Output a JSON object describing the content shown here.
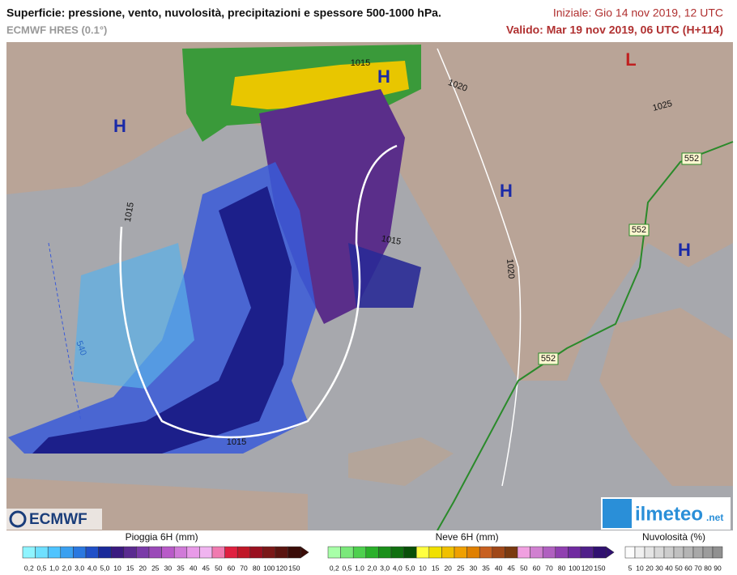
{
  "header": {
    "title": "Superficie: pressione, vento, nuvolosità, precipitazioni e spessore 500-1000 hPa.",
    "model": "ECMWF HRES (0.1°)",
    "init": "Iniziale: Gio 14 nov 2019, 12 UTC",
    "valid": "Valido: Mar 19 nov 2019, 06 UTC (H+114)"
  },
  "map": {
    "pressure_centers": [
      "H",
      "H",
      "H",
      "H",
      "L"
    ],
    "isobar_labels": [
      "1015",
      "1015",
      "1015",
      "1015",
      "1020",
      "1020",
      "1025"
    ],
    "thickness_labels": [
      "552",
      "552",
      "552",
      "540"
    ]
  },
  "logos": {
    "ecmwf": "ECMWF",
    "ilmeteo": "ilmeteo",
    "ilmeteo_suffix": ".net"
  },
  "legend": {
    "rain": {
      "title": "Pioggia 6H (mm)",
      "ticks": [
        "0,2",
        "0,5",
        "1,0",
        "2,0",
        "3,0",
        "4,0",
        "5,0",
        "10",
        "15",
        "20",
        "25",
        "30",
        "35",
        "40",
        "45",
        "50",
        "60",
        "70",
        "80",
        "100",
        "120",
        "150"
      ]
    },
    "snow": {
      "title": "Neve 6H (mm)",
      "ticks": [
        "0,2",
        "0,5",
        "1,0",
        "2,0",
        "3,0",
        "4,0",
        "5,0",
        "10",
        "15",
        "20",
        "25",
        "30",
        "35",
        "40",
        "45",
        "50",
        "60",
        "70",
        "80",
        "100",
        "120",
        "150"
      ]
    },
    "cloud": {
      "title": "Nuvolosità (%)",
      "ticks": [
        "5",
        "10",
        "20",
        "30",
        "40",
        "50",
        "60",
        "70",
        "80",
        "90"
      ]
    }
  }
}
